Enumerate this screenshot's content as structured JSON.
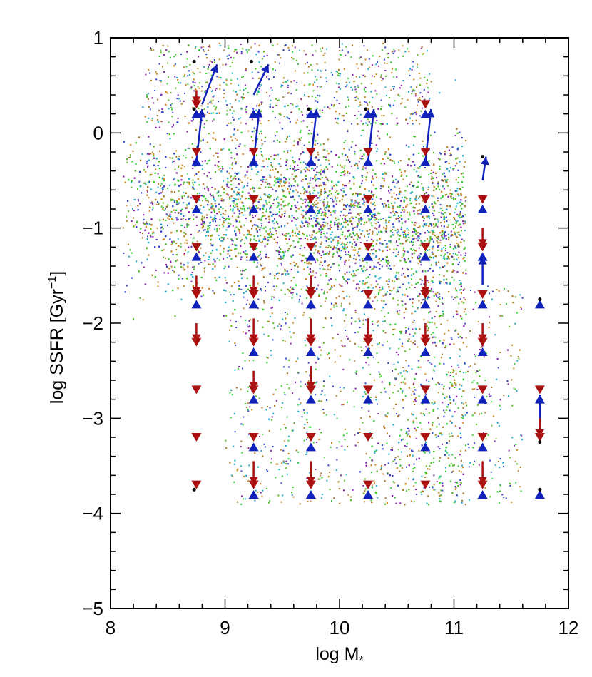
{
  "chart_data": {
    "type": "scatter",
    "title": "",
    "xlabel": "log M*",
    "ylabel": "log SSFR [Gyr^-1]",
    "ylabel_parts": {
      "main": "log SSFR [Gyr",
      "sup": "−1",
      "end": "]"
    },
    "xlabel_parts": {
      "main": "log M",
      "sub": "*"
    },
    "xlim": [
      8,
      12
    ],
    "ylim": [
      -5,
      1
    ],
    "x_ticks": [
      8,
      9,
      10,
      11,
      12
    ],
    "x_tick_labels": [
      "8",
      "9",
      "10",
      "11",
      "12"
    ],
    "y_ticks": [
      1,
      0,
      -1,
      -2,
      -3,
      -4,
      -5
    ],
    "y_tick_labels": [
      "1",
      "0",
      "−1",
      "−2",
      "−3",
      "−4",
      "−5"
    ],
    "grid": false,
    "scatter_colors": [
      "#33cc33",
      "#55bb22",
      "#8822aa",
      "#22aacc",
      "#3344cc",
      "#cc8822",
      "#aa7722"
    ],
    "arrow_colors": {
      "down": "#aa1111",
      "up": "#1122bb"
    },
    "mass_bins": [
      8.75,
      9.25,
      9.75,
      10.25,
      10.75,
      11.25,
      11.75
    ],
    "series": [
      {
        "marker": "triangle-down",
        "color": "#aa1111",
        "points": [
          {
            "x": 8.75,
            "y": 0.3
          },
          {
            "x": 8.75,
            "y": -0.2
          },
          {
            "x": 8.75,
            "y": -0.7
          },
          {
            "x": 8.75,
            "y": -1.2
          },
          {
            "x": 8.75,
            "y": -1.7
          },
          {
            "x": 8.75,
            "y": -2.2
          },
          {
            "x": 8.75,
            "y": -2.7
          },
          {
            "x": 8.75,
            "y": -3.2
          },
          {
            "x": 8.75,
            "y": -3.7
          },
          {
            "x": 9.25,
            "y": -0.2
          },
          {
            "x": 9.25,
            "y": -0.7
          },
          {
            "x": 9.25,
            "y": -1.2
          },
          {
            "x": 9.25,
            "y": -1.7
          },
          {
            "x": 9.25,
            "y": -2.2
          },
          {
            "x": 9.25,
            "y": -2.7
          },
          {
            "x": 9.25,
            "y": -3.2
          },
          {
            "x": 9.25,
            "y": -3.7
          },
          {
            "x": 9.75,
            "y": -0.2
          },
          {
            "x": 9.75,
            "y": -0.7
          },
          {
            "x": 9.75,
            "y": -1.2
          },
          {
            "x": 9.75,
            "y": -1.7
          },
          {
            "x": 9.75,
            "y": -2.2
          },
          {
            "x": 9.75,
            "y": -2.7
          },
          {
            "x": 9.75,
            "y": -3.2
          },
          {
            "x": 9.75,
            "y": -3.7
          },
          {
            "x": 10.25,
            "y": -0.2
          },
          {
            "x": 10.25,
            "y": -0.7
          },
          {
            "x": 10.25,
            "y": -1.2
          },
          {
            "x": 10.25,
            "y": -1.7
          },
          {
            "x": 10.25,
            "y": -2.2
          },
          {
            "x": 10.25,
            "y": -2.7
          },
          {
            "x": 10.25,
            "y": -3.2
          },
          {
            "x": 10.25,
            "y": -3.7
          },
          {
            "x": 10.75,
            "y": 0.3
          },
          {
            "x": 10.75,
            "y": -0.2
          },
          {
            "x": 10.75,
            "y": -0.7
          },
          {
            "x": 10.75,
            "y": -1.2
          },
          {
            "x": 10.75,
            "y": -1.7
          },
          {
            "x": 10.75,
            "y": -2.2
          },
          {
            "x": 10.75,
            "y": -2.7
          },
          {
            "x": 10.75,
            "y": -3.2
          },
          {
            "x": 10.75,
            "y": -3.7
          },
          {
            "x": 11.25,
            "y": -0.7
          },
          {
            "x": 11.25,
            "y": -1.2
          },
          {
            "x": 11.25,
            "y": -1.7
          },
          {
            "x": 11.25,
            "y": -2.2
          },
          {
            "x": 11.25,
            "y": -2.7
          },
          {
            "x": 11.25,
            "y": -3.2
          },
          {
            "x": 11.25,
            "y": -3.7
          },
          {
            "x": 11.75,
            "y": -2.7
          },
          {
            "x": 11.75,
            "y": -3.2
          }
        ]
      },
      {
        "marker": "triangle-up",
        "color": "#1122bb",
        "points": [
          {
            "x": 8.75,
            "y": 0.2
          },
          {
            "x": 8.75,
            "y": -0.3
          },
          {
            "x": 8.75,
            "y": -0.8
          },
          {
            "x": 8.75,
            "y": -1.3
          },
          {
            "x": 8.75,
            "y": -1.8
          },
          {
            "x": 9.25,
            "y": 0.2
          },
          {
            "x": 9.25,
            "y": -0.3
          },
          {
            "x": 9.25,
            "y": -0.8
          },
          {
            "x": 9.25,
            "y": -1.3
          },
          {
            "x": 9.25,
            "y": -1.8
          },
          {
            "x": 9.25,
            "y": -2.3
          },
          {
            "x": 9.25,
            "y": -2.8
          },
          {
            "x": 9.25,
            "y": -3.3
          },
          {
            "x": 9.25,
            "y": -3.8
          },
          {
            "x": 9.75,
            "y": 0.2
          },
          {
            "x": 9.75,
            "y": -0.3
          },
          {
            "x": 9.75,
            "y": -0.8
          },
          {
            "x": 9.75,
            "y": -1.3
          },
          {
            "x": 9.75,
            "y": -1.8
          },
          {
            "x": 9.75,
            "y": -2.3
          },
          {
            "x": 9.75,
            "y": -2.8
          },
          {
            "x": 9.75,
            "y": -3.3
          },
          {
            "x": 9.75,
            "y": -3.8
          },
          {
            "x": 10.25,
            "y": 0.2
          },
          {
            "x": 10.25,
            "y": -0.3
          },
          {
            "x": 10.25,
            "y": -0.8
          },
          {
            "x": 10.25,
            "y": -1.3
          },
          {
            "x": 10.25,
            "y": -1.8
          },
          {
            "x": 10.25,
            "y": -2.3
          },
          {
            "x": 10.25,
            "y": -2.8
          },
          {
            "x": 10.25,
            "y": -3.8
          },
          {
            "x": 10.75,
            "y": 0.2
          },
          {
            "x": 10.75,
            "y": -0.3
          },
          {
            "x": 10.75,
            "y": -0.8
          },
          {
            "x": 10.75,
            "y": -1.3
          },
          {
            "x": 10.75,
            "y": -1.8
          },
          {
            "x": 10.75,
            "y": -2.3
          },
          {
            "x": 10.75,
            "y": -2.8
          },
          {
            "x": 10.75,
            "y": -3.3
          },
          {
            "x": 11.25,
            "y": -0.8
          },
          {
            "x": 11.25,
            "y": -1.3
          },
          {
            "x": 11.25,
            "y": -1.8
          },
          {
            "x": 11.25,
            "y": -2.3
          },
          {
            "x": 11.25,
            "y": -2.8
          },
          {
            "x": 11.25,
            "y": -3.3
          },
          {
            "x": 11.25,
            "y": -3.8
          },
          {
            "x": 11.75,
            "y": -1.8
          },
          {
            "x": 11.75,
            "y": -2.8
          },
          {
            "x": 11.75,
            "y": -3.8
          }
        ]
      }
    ],
    "arrows": [
      {
        "x0": 8.75,
        "y0": -0.3,
        "x1": 8.8,
        "y1": 0.25,
        "color": "#1122bb"
      },
      {
        "x0": 8.8,
        "y0": 0.3,
        "x1": 8.93,
        "y1": 0.72,
        "color": "#1122bb"
      },
      {
        "x0": 9.25,
        "y0": -0.3,
        "x1": 9.3,
        "y1": 0.25,
        "color": "#1122bb"
      },
      {
        "x0": 9.25,
        "y0": 0.4,
        "x1": 9.38,
        "y1": 0.72,
        "color": "#1122bb"
      },
      {
        "x0": 9.75,
        "y0": -0.3,
        "x1": 9.8,
        "y1": 0.25,
        "color": "#1122bb"
      },
      {
        "x0": 10.25,
        "y0": -0.3,
        "x1": 10.3,
        "y1": 0.25,
        "color": "#1122bb"
      },
      {
        "x0": 10.75,
        "y0": -0.3,
        "x1": 10.8,
        "y1": 0.25,
        "color": "#1122bb"
      },
      {
        "x0": 11.25,
        "y0": -0.5,
        "x1": 11.28,
        "y1": -0.25,
        "color": "#1122bb"
      },
      {
        "x0": 11.25,
        "y0": -1.6,
        "x1": 11.25,
        "y1": -1.3,
        "color": "#1122bb"
      },
      {
        "x0": 11.75,
        "y0": -3.0,
        "x1": 11.75,
        "y1": -2.75,
        "color": "#1122bb"
      },
      {
        "x0": 8.75,
        "y0": 0.45,
        "x1": 8.75,
        "y1": 0.3,
        "color": "#aa1111"
      },
      {
        "x0": 8.75,
        "y0": -1.5,
        "x1": 8.75,
        "y1": -1.7,
        "color": "#aa1111"
      },
      {
        "x0": 8.75,
        "y0": -2.0,
        "x1": 8.75,
        "y1": -2.2,
        "color": "#aa1111"
      },
      {
        "x0": 9.25,
        "y0": -1.5,
        "x1": 9.25,
        "y1": -1.7,
        "color": "#aa1111"
      },
      {
        "x0": 9.25,
        "y0": -1.95,
        "x1": 9.25,
        "y1": -2.2,
        "color": "#aa1111"
      },
      {
        "x0": 9.25,
        "y0": -2.5,
        "x1": 9.25,
        "y1": -2.7,
        "color": "#aa1111"
      },
      {
        "x0": 9.25,
        "y0": -3.45,
        "x1": 9.25,
        "y1": -3.7,
        "color": "#aa1111"
      },
      {
        "x0": 9.75,
        "y0": -1.5,
        "x1": 9.75,
        "y1": -1.7,
        "color": "#aa1111"
      },
      {
        "x0": 9.75,
        "y0": -1.95,
        "x1": 9.75,
        "y1": -2.2,
        "color": "#aa1111"
      },
      {
        "x0": 9.75,
        "y0": -2.45,
        "x1": 9.75,
        "y1": -2.7,
        "color": "#aa1111"
      },
      {
        "x0": 9.75,
        "y0": -3.45,
        "x1": 9.75,
        "y1": -3.7,
        "color": "#aa1111"
      },
      {
        "x0": 10.25,
        "y0": -1.95,
        "x1": 10.25,
        "y1": -2.2,
        "color": "#aa1111"
      },
      {
        "x0": 10.75,
        "y0": -1.5,
        "x1": 10.75,
        "y1": -1.7,
        "color": "#aa1111"
      },
      {
        "x0": 10.75,
        "y0": -2.0,
        "x1": 10.75,
        "y1": -2.2,
        "color": "#aa1111"
      },
      {
        "x0": 11.25,
        "y0": -1.0,
        "x1": 11.25,
        "y1": -1.2,
        "color": "#aa1111"
      },
      {
        "x0": 11.25,
        "y0": -2.0,
        "x1": 11.25,
        "y1": -2.2,
        "color": "#aa1111"
      },
      {
        "x0": 11.25,
        "y0": -3.45,
        "x1": 11.25,
        "y1": -3.7,
        "color": "#aa1111"
      },
      {
        "x0": 11.75,
        "y0": -3.0,
        "x1": 11.75,
        "y1": -3.2,
        "color": "#aa1111"
      }
    ],
    "black_dots": [
      {
        "x": 8.73,
        "y": 0.75
      },
      {
        "x": 8.73,
        "y": 0.25
      },
      {
        "x": 9.23,
        "y": 0.75
      },
      {
        "x": 9.73,
        "y": 0.25
      },
      {
        "x": 10.23,
        "y": 0.25
      },
      {
        "x": 11.25,
        "y": -0.25
      },
      {
        "x": 11.75,
        "y": -1.75
      },
      {
        "x": 11.75,
        "y": -3.75
      },
      {
        "x": 11.75,
        "y": -3.25
      },
      {
        "x": 8.73,
        "y": -3.75
      }
    ]
  }
}
